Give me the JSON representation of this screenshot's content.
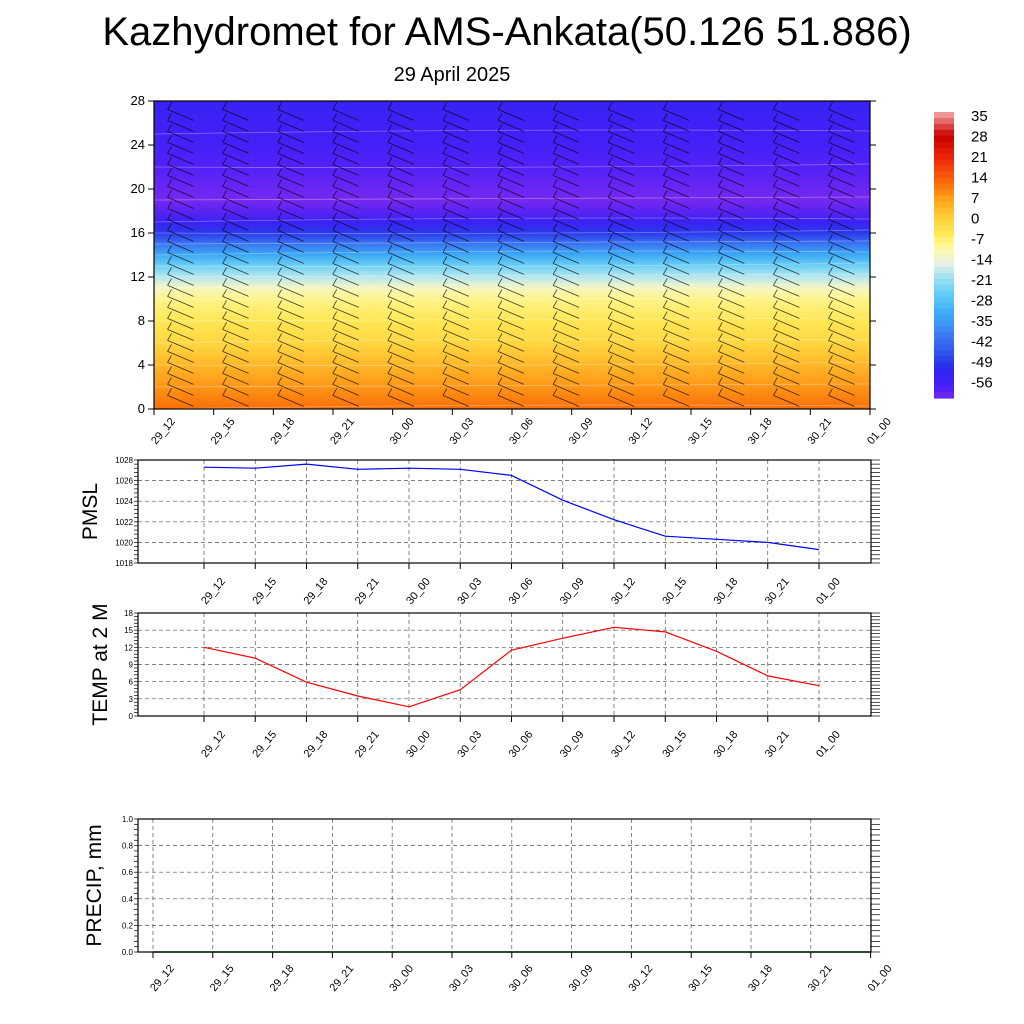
{
  "title": "Kazhydromet for AMS-Ankata(50.126 51.886)",
  "subtitle": "29 April 2025",
  "chart_data": [
    {
      "type": "heatmap",
      "title": "",
      "x": [
        "29_12",
        "29_15",
        "29_18",
        "29_21",
        "30_00",
        "30_03",
        "30_06",
        "30_09",
        "30_12",
        "30_15",
        "30_18",
        "30_21",
        "01_00"
      ],
      "y_ticks": [
        0,
        4,
        8,
        12,
        16,
        20,
        24,
        28
      ],
      "ylim": [
        0,
        28
      ],
      "colorbar": {
        "labels": [
          "35",
          "28",
          "21",
          "14",
          "7",
          "0",
          "-7",
          "-14",
          "-21",
          "-28",
          "-35",
          "-42",
          "-49",
          "-56"
        ],
        "range": [
          -60,
          36
        ]
      },
      "bands": [
        {
          "y": 0,
          "value": 12
        },
        {
          "y": 2,
          "value": 8
        },
        {
          "y": 4,
          "value": 4
        },
        {
          "y": 6,
          "value": -1
        },
        {
          "y": 8,
          "value": -4
        },
        {
          "y": 10,
          "value": -8
        },
        {
          "y": 11,
          "value": -12
        },
        {
          "y": 12,
          "value": -18
        },
        {
          "y": 13,
          "value": -24
        },
        {
          "y": 14,
          "value": -32
        },
        {
          "y": 15,
          "value": -40
        },
        {
          "y": 16,
          "value": -48
        },
        {
          "y": 17,
          "value": -54
        },
        {
          "y": 19,
          "value": -60
        },
        {
          "y": 22,
          "value": -57
        },
        {
          "y": 25,
          "value": -55
        },
        {
          "y": 28,
          "value": -53
        }
      ],
      "wind_barbs": true
    },
    {
      "type": "line",
      "ylabel": "PMSL",
      "x": [
        "29_12",
        "29_15",
        "29_18",
        "29_21",
        "30_00",
        "30_03",
        "30_06",
        "30_09",
        "30_12",
        "30_15",
        "30_18",
        "30_21",
        "01_00"
      ],
      "values": [
        1027.3,
        1027.2,
        1027.6,
        1027.1,
        1027.2,
        1027.1,
        1026.5,
        1024.1,
        1022.2,
        1020.6,
        1020.3,
        1020.0,
        1019.3
      ],
      "ylim": [
        1018,
        1028
      ],
      "y_ticks": [
        "1018",
        "1020",
        "1022",
        "1024",
        "1026",
        "1028"
      ],
      "color": "#0000ff",
      "grid": true
    },
    {
      "type": "line",
      "ylabel": "TEMP at 2 M",
      "x": [
        "29_12",
        "29_15",
        "29_18",
        "29_21",
        "30_00",
        "30_03",
        "30_06",
        "30_09",
        "30_12",
        "30_15",
        "30_18",
        "30_21",
        "01_00"
      ],
      "values": [
        12.0,
        10.1,
        5.9,
        3.5,
        1.6,
        4.6,
        11.5,
        13.6,
        15.5,
        14.7,
        11.3,
        7.0,
        5.3
      ],
      "ylim": [
        0,
        18
      ],
      "y_ticks": [
        "0",
        "3",
        "6",
        "9",
        "12",
        "15",
        "18"
      ],
      "color": "#ff0000",
      "grid": true
    },
    {
      "type": "line",
      "ylabel": "PRECIP, mm",
      "x": [
        "29_12",
        "29_15",
        "29_18",
        "29_21",
        "30_00",
        "30_03",
        "30_06",
        "30_09",
        "30_12",
        "30_15",
        "30_18",
        "30_21",
        "01_00"
      ],
      "values": [
        0,
        0,
        0,
        0,
        0,
        0,
        0,
        0,
        0,
        0,
        0,
        0,
        0
      ],
      "ylim": [
        0,
        1
      ],
      "y_ticks": [
        "0.0",
        "0.2",
        "0.4",
        "0.6",
        "0.8",
        "1.0"
      ],
      "color": "#006400",
      "grid": true
    }
  ]
}
